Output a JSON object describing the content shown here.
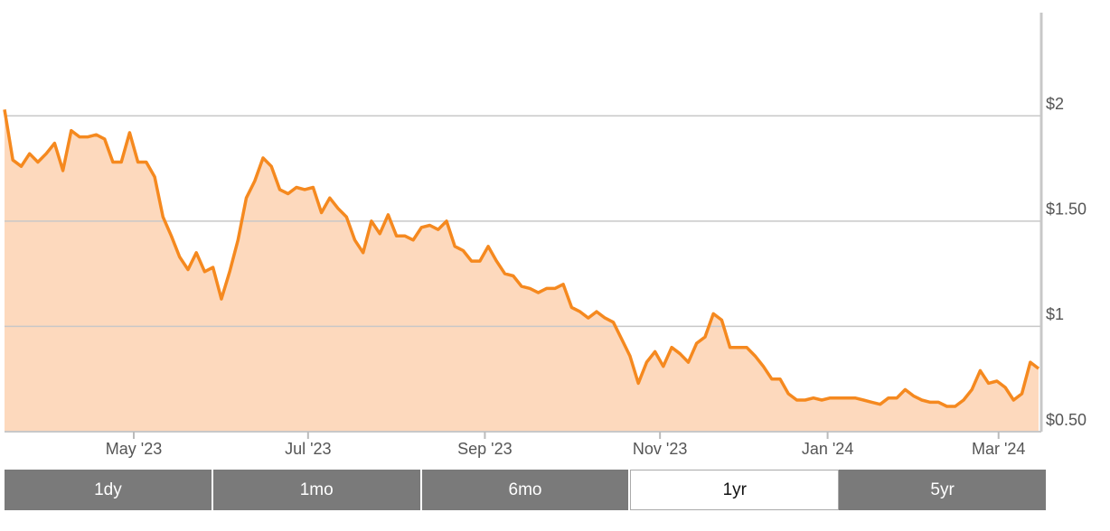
{
  "chart_data": {
    "type": "area",
    "values": [
      2.03,
      1.79,
      1.76,
      1.82,
      1.78,
      1.82,
      1.87,
      1.74,
      1.93,
      1.9,
      1.9,
      1.91,
      1.89,
      1.78,
      1.78,
      1.92,
      1.78,
      1.78,
      1.71,
      1.52,
      1.43,
      1.33,
      1.27,
      1.35,
      1.26,
      1.28,
      1.13,
      1.26,
      1.41,
      1.61,
      1.69,
      1.8,
      1.76,
      1.65,
      1.63,
      1.66,
      1.65,
      1.66,
      1.54,
      1.61,
      1.56,
      1.52,
      1.41,
      1.35,
      1.5,
      1.44,
      1.53,
      1.43,
      1.43,
      1.41,
      1.47,
      1.48,
      1.46,
      1.5,
      1.38,
      1.36,
      1.31,
      1.31,
      1.38,
      1.31,
      1.25,
      1.24,
      1.19,
      1.18,
      1.16,
      1.18,
      1.18,
      1.2,
      1.09,
      1.07,
      1.04,
      1.07,
      1.04,
      1.02,
      0.94,
      0.86,
      0.73,
      0.83,
      0.88,
      0.81,
      0.9,
      0.87,
      0.83,
      0.92,
      0.95,
      1.06,
      1.03,
      0.9,
      0.9,
      0.9,
      0.86,
      0.81,
      0.75,
      0.75,
      0.68,
      0.65,
      0.65,
      0.66,
      0.65,
      0.66,
      0.66,
      0.66,
      0.66,
      0.65,
      0.64,
      0.63,
      0.66,
      0.66,
      0.7,
      0.67,
      0.65,
      0.64,
      0.64,
      0.62,
      0.62,
      0.65,
      0.7,
      0.79,
      0.73,
      0.74,
      0.71,
      0.65,
      0.68,
      0.83,
      0.8
    ],
    "line_color": "#f5891f",
    "fill_color": "#fdd9bd",
    "xlim": [
      0,
      124
    ],
    "xticks": [
      {
        "value": 15.5,
        "label": "May '23"
      },
      {
        "value": 36.4,
        "label": "Jul '23"
      },
      {
        "value": 57.6,
        "label": "Sep '23"
      },
      {
        "value": 78.6,
        "label": "Nov '23"
      },
      {
        "value": 98.7,
        "label": "Jan '24"
      },
      {
        "value": 119.2,
        "label": "Mar '24"
      }
    ],
    "ylim": [
      0.5,
      2.49
    ],
    "yticks": [
      {
        "value": 0.5,
        "label": "$0.50"
      },
      {
        "value": 1,
        "label": "$1"
      },
      {
        "value": 1.5,
        "label": "$1.50"
      },
      {
        "value": 2,
        "label": "$2"
      }
    ],
    "grid": true
  },
  "range_buttons": [
    "1dy",
    "1mo",
    "6mo",
    "1yr",
    "5yr"
  ],
  "selected_range": "1yr"
}
